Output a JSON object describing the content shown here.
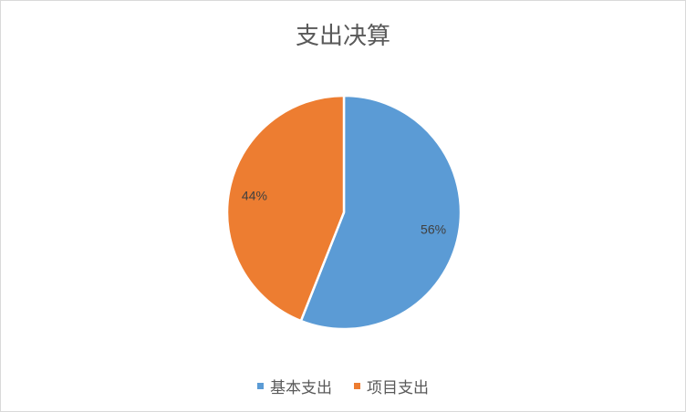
{
  "chart_data": {
    "type": "pie",
    "title": "支出决算",
    "slices": [
      {
        "name": "基本支出",
        "value": 56,
        "label": "56%",
        "color": "#5b9bd5"
      },
      {
        "name": "项目支出",
        "value": 44,
        "label": "44%",
        "color": "#ed7d31"
      }
    ],
    "legend_position": "bottom"
  }
}
